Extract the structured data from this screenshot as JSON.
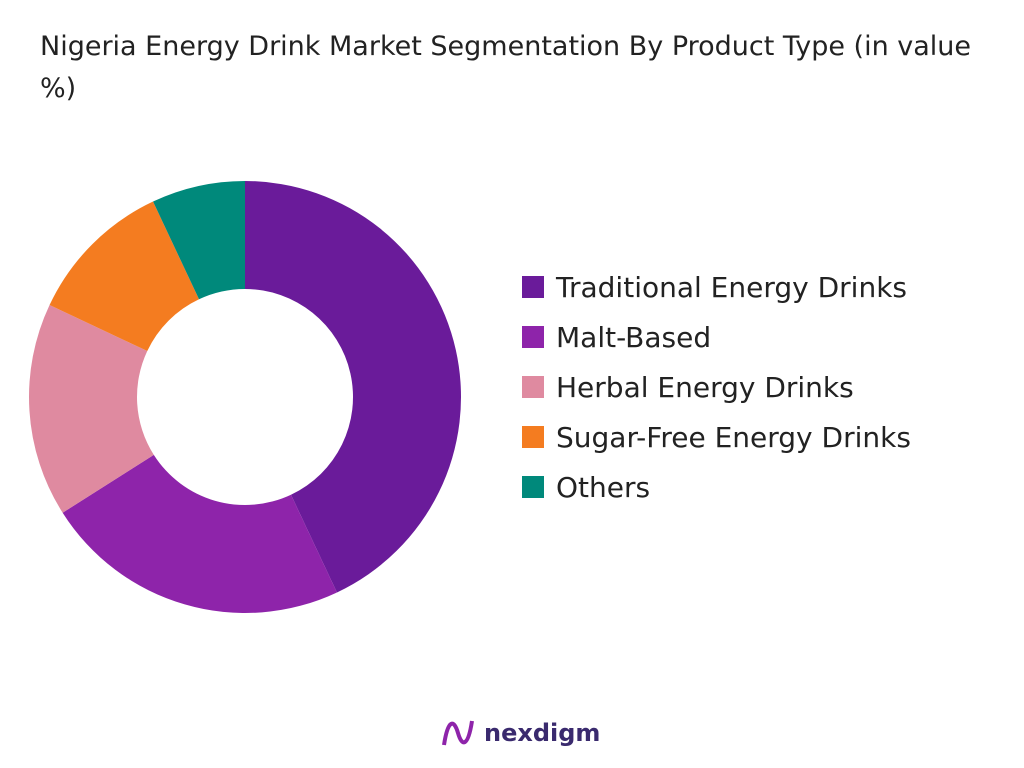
{
  "chart_data": {
    "type": "donut",
    "title": "Nigeria Energy Drink Market Segmentation By Product Type (in value %)",
    "categories": [
      "Traditional Energy Drinks",
      "Malt-Based",
      "Herbal Energy Drinks",
      "Sugar-Free Energy Drinks",
      "Others"
    ],
    "values": [
      43,
      23,
      16,
      11,
      7
    ],
    "colors": [
      "#6a1b9a",
      "#8e24aa",
      "#df8aa0",
      "#f47c20",
      "#00897b"
    ],
    "legend": "right"
  },
  "brand": "nexdigm"
}
